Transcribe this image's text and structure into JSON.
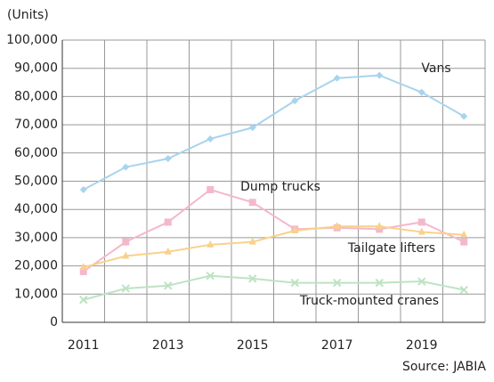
{
  "chart_data": {
    "type": "line",
    "y_axis_label": "(Units)",
    "source": "Source: JABIA",
    "categories": [
      "2011",
      null,
      "2013",
      null,
      "2015",
      null,
      "2017",
      null,
      "2019",
      null
    ],
    "series": [
      {
        "name": "Vans",
        "color": "#a8d4ee",
        "marker": "diamond",
        "values": [
          47000,
          55000,
          58000,
          65000,
          69000,
          78500,
          86500,
          87500,
          81500,
          73000
        ]
      },
      {
        "name": "Dump trucks",
        "color": "#f4b8cc",
        "marker": "square",
        "values": [
          18000,
          28500,
          35500,
          47000,
          42500,
          33000,
          33500,
          33000,
          35500,
          28500
        ]
      },
      {
        "name": "Tailgate lifters",
        "color": "#f9d18a",
        "marker": "triangle",
        "values": [
          19500,
          23500,
          25000,
          27500,
          28500,
          32500,
          34000,
          34000,
          32000,
          31000
        ]
      },
      {
        "name": "Truck-mounted cranes",
        "color": "#bde3c4",
        "marker": "x",
        "values": [
          8000,
          12000,
          13000,
          16500,
          15500,
          14000,
          14000,
          14000,
          14500,
          11500
        ]
      }
    ],
    "ylim": [
      0,
      100000
    ],
    "yticks": [
      0,
      {
        "value": 10000,
        "label": "10,000"
      },
      {
        "value": 20000,
        "label": "20,000"
      },
      {
        "value": 30000,
        "label": "30,000"
      },
      {
        "value": 40000,
        "label": "40,000"
      },
      {
        "value": 50000,
        "label": "50,000"
      },
      {
        "value": 60000,
        "label": "60,000"
      },
      {
        "value": 70000,
        "label": "70,000"
      },
      {
        "value": 80000,
        "label": "80,000"
      },
      {
        "value": 90000,
        "label": "90,000"
      },
      {
        "value": 100000,
        "label": "100,000"
      }
    ],
    "grid": true
  }
}
